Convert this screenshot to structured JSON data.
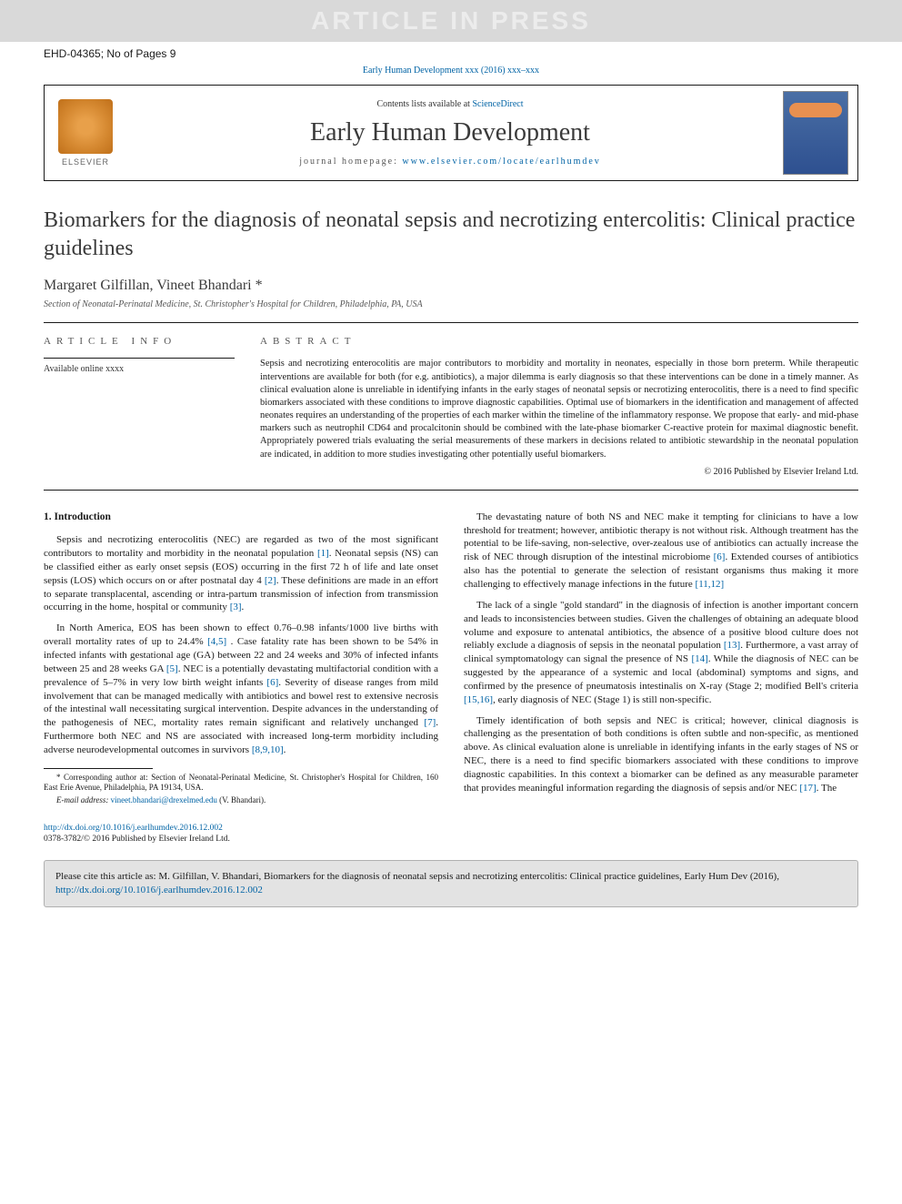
{
  "banner": {
    "text": "ARTICLE IN PRESS"
  },
  "article_id": "EHD-04365; No of Pages 9",
  "journal_cite": "Early Human Development xxx (2016) xxx–xxx",
  "header": {
    "contents_prefix": "Contents lists available at ",
    "contents_link": "ScienceDirect",
    "journal_name": "Early Human Development",
    "homepage_prefix": "journal homepage: ",
    "homepage_url": "www.elsevier.com/locate/earlhumdev",
    "elsevier_label": "ELSEVIER"
  },
  "title": "Biomarkers for the diagnosis of neonatal sepsis and necrotizing entercolitis: Clinical practice guidelines",
  "authors": "Margaret Gilfillan, Vineet Bhandari *",
  "affiliation": "Section of Neonatal-Perinatal Medicine, St. Christopher's Hospital for Children, Philadelphia, PA, USA",
  "info": {
    "label": "ARTICLE INFO",
    "available": "Available online xxxx"
  },
  "abstract": {
    "label": "ABSTRACT",
    "text": "Sepsis and necrotizing enterocolitis are major contributors to morbidity and mortality in neonates, especially in those born preterm. While therapeutic interventions are available for both (for e.g. antibiotics), a major dilemma is early diagnosis so that these interventions can be done in a timely manner. As clinical evaluation alone is unreliable in identifying infants in the early stages of neonatal sepsis or necrotizing enterocolitis, there is a need to find specific biomarkers associated with these conditions to improve diagnostic capabilities. Optimal use of biomarkers in the identification and management of affected neonates requires an understanding of the properties of each marker within the timeline of the inflammatory response. We propose that early- and mid-phase markers such as neutrophil CD64 and procalcitonin should be combined with the late-phase biomarker C-reactive protein for maximal diagnostic benefit. Appropriately powered trials evaluating the serial measurements of these markers in decisions related to antibiotic stewardship in the neonatal population are indicated, in addition to more studies investigating other potentially useful biomarkers.",
    "copyright": "© 2016 Published by Elsevier Ireland Ltd."
  },
  "body": {
    "section_heading": "1. Introduction",
    "left": {
      "p1_a": "Sepsis and necrotizing enterocolitis (NEC) are regarded as two of the most significant contributors to mortality and morbidity in the neonatal population ",
      "p1_r1": "[1]",
      "p1_b": ". Neonatal sepsis (NS) can be classified either as early onset sepsis (EOS) occurring in the first 72 h of life and late onset sepsis (LOS) which occurs on or after postnatal day 4 ",
      "p1_r2": "[2]",
      "p1_c": ". These definitions are made in an effort to separate transplacental, ascending or intra-partum transmission of infection from transmission occurring in the home, hospital or community ",
      "p1_r3": "[3]",
      "p1_d": ".",
      "p2_a": "In North America, EOS has been shown to effect 0.76–0.98 infants/1000 live births with overall mortality rates of up to 24.4% ",
      "p2_r1": "[4,5]",
      "p2_b": " . Case fatality rate has been shown to be 54% in infected infants with gestational age (GA) between 22 and 24 weeks and 30% of infected infants between 25 and 28 weeks GA ",
      "p2_r2": "[5]",
      "p2_c": ". NEC is a potentially devastating multifactorial condition with a prevalence of 5–7% in very low birth weight infants ",
      "p2_r3": "[6]",
      "p2_d": ". Severity of disease ranges from mild involvement that can be managed medically with antibiotics and bowel rest to extensive necrosis of the intestinal wall necessitating surgical intervention. Despite advances in the understanding of the pathogenesis of NEC, mortality rates remain significant and relatively unchanged ",
      "p2_r4": "[7]",
      "p2_e": ". Furthermore both NEC and NS are associated with increased long-term morbidity including adverse neurodevelopmental outcomes in survivors ",
      "p2_r5": "[8,9,10]",
      "p2_f": ".",
      "fn1": "* Corresponding author at: Section of Neonatal-Perinatal Medicine, St. Christopher's Hospital for Children, 160 East Erie Avenue, Philadelphia, PA 19134, USA.",
      "fn2_prefix": "E-mail address: ",
      "fn2_email": "vineet.bhandari@drexelmed.edu",
      "fn2_suffix": " (V. Bhandari)."
    },
    "right": {
      "p1_a": "The devastating nature of both NS and NEC make it tempting for clinicians to have a low threshold for treatment; however, antibiotic therapy is not without risk. Although treatment has the potential to be life-saving, non-selective, over-zealous use of antibiotics can actually increase the risk of NEC through disruption of the intestinal microbiome ",
      "p1_r1": "[6]",
      "p1_b": ". Extended courses of antibiotics also has the potential to generate the selection of resistant organisms thus making it more challenging to effectively manage infections in the future ",
      "p1_r2": "[11,12]",
      "p2_a": "The lack of a single \"gold standard\" in the diagnosis of infection is another important concern and leads to inconsistencies between studies. Given the challenges of obtaining an adequate blood volume and exposure to antenatal antibiotics, the absence of a positive blood culture does not reliably exclude a diagnosis of sepsis in the neonatal population ",
      "p2_r1": "[13]",
      "p2_b": ". Furthermore, a vast array of clinical symptomatology can signal the presence of NS ",
      "p2_r2": "[14]",
      "p2_c": ". While the diagnosis of NEC can be suggested by the appearance of a systemic and local (abdominal) symptoms and signs, and confirmed by the presence of pneumatosis intestinalis on X-ray (Stage 2; modified Bell's criteria ",
      "p2_r3": "[15,16]",
      "p2_d": ", early diagnosis of NEC (Stage 1) is still non-specific.",
      "p3_a": "Timely identification of both sepsis and NEC is critical; however, clinical diagnosis is challenging as the presentation of both conditions is often subtle and non-specific, as mentioned above. As clinical evaluation alone is unreliable in identifying infants in the early stages of NS or NEC, there is a need to find specific biomarkers associated with these conditions to improve diagnostic capabilities. In this context a biomarker can be defined as any measurable parameter that provides meaningful information regarding the diagnosis of sepsis and/or NEC ",
      "p3_r1": "[17]",
      "p3_b": ". The"
    }
  },
  "doi": {
    "url": "http://dx.doi.org/10.1016/j.earlhumdev.2016.12.002",
    "issn_line": "0378-3782/© 2016 Published by Elsevier Ireland Ltd."
  },
  "citation_box": {
    "prefix": "Please cite this article as: M. Gilfillan, V. Bhandari, Biomarkers for the diagnosis of neonatal sepsis and necrotizing entercolitis: Clinical practice guidelines, Early Hum Dev (2016), ",
    "url": "http://dx.doi.org/10.1016/j.earlhumdev.2016.12.002"
  },
  "colors": {
    "link": "#0063a5",
    "banner_bg": "#d9d9d9",
    "banner_fg": "#ececec",
    "cite_box_bg": "#e3e3e3"
  }
}
